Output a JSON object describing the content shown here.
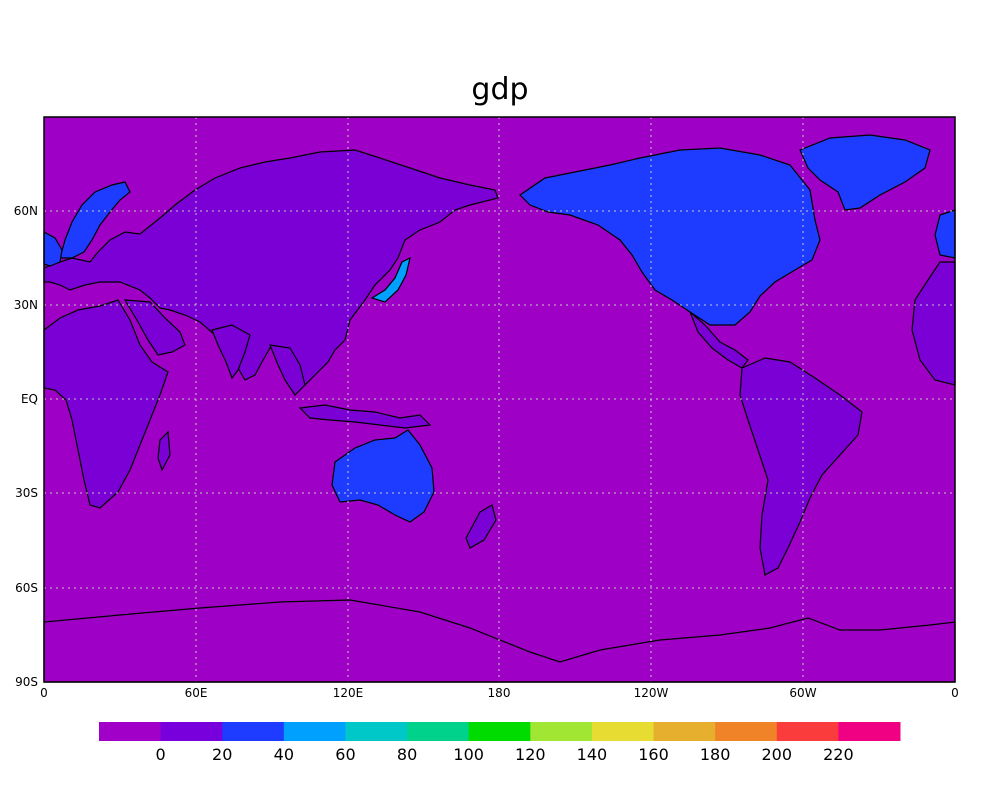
{
  "title": "gdp",
  "map": {
    "lat_labels": [
      "60N",
      "30N",
      "EQ",
      "30S",
      "60S",
      "90S"
    ],
    "lon_labels": [
      "0",
      "60E",
      "120E",
      "180",
      "120W",
      "60W",
      "0"
    ],
    "ocean_color": "#9f00c5",
    "low_land_color": "#7a00d6",
    "high_land_color": "#1e3cff",
    "grid": true,
    "projection": "cylindrical equidistant, 0 to 360 longitude"
  },
  "colorbar": {
    "labels": [
      "0",
      "20",
      "40",
      "60",
      "80",
      "100",
      "120",
      "140",
      "160",
      "180",
      "200",
      "220"
    ],
    "colors": [
      "#a000c8",
      "#7800dc",
      "#1e3cff",
      "#00a0ff",
      "#00c8c8",
      "#00d28c",
      "#00dc00",
      "#a0e632",
      "#e6dc32",
      "#e6af2d",
      "#f08228",
      "#fa3c3c",
      "#f00082"
    ]
  }
}
